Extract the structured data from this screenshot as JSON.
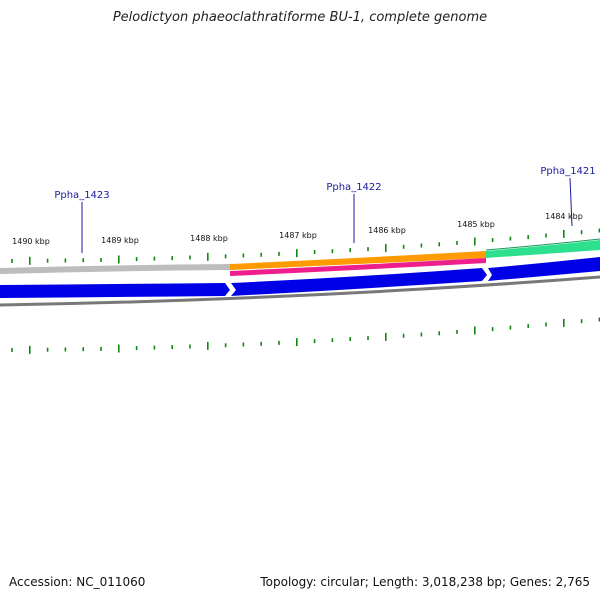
{
  "title": "Pelodictyon phaeoclathratiforme BU-1, complete genome",
  "footer": {
    "accession": "Accession: NC_011060",
    "summary": "Topology: circular; Length: 3,018,238 bp; Genes: 2,765"
  },
  "genes": [
    "Ppha_1423",
    "Ppha_1422",
    "Ppha_1421"
  ],
  "ticks": [
    "1490 kbp",
    "1489 kbp",
    "1488 kbp",
    "1487 kbp",
    "1486 kbp",
    "1485 kbp",
    "1484 kbp"
  ],
  "colors": {
    "backbone_gray": "#bbbbbb",
    "orange": "#ff9900",
    "magenta": "#ee1e8c",
    "teal_green": "#28e08c",
    "blue": "#0000e6",
    "dark_gray": "#777777",
    "tick_green": "#118811",
    "label_blue": "#1a1aa0"
  }
}
